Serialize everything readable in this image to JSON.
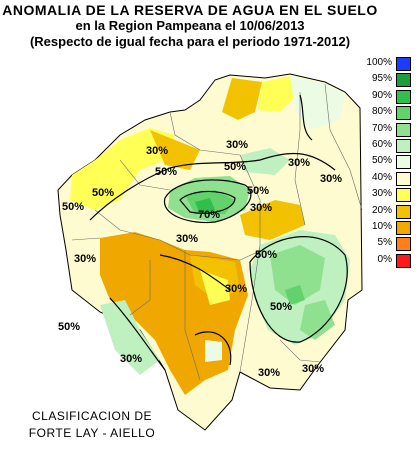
{
  "title": {
    "line1": "ANOMALIA DE LA RESERVA DE AGUA EN EL SUELO",
    "line2": "en la Region Pampeana el   10/06/2013",
    "line3": "(Respecto de igual fecha para el periodo 1971-2012)"
  },
  "legend": [
    {
      "label": "100%",
      "color": "#1a3cff"
    },
    {
      "label": "95%",
      "color": "#1e9e3a"
    },
    {
      "label": "90%",
      "color": "#2fbf4a"
    },
    {
      "label": "80%",
      "color": "#62d36c"
    },
    {
      "label": "70%",
      "color": "#8fe18f"
    },
    {
      "label": "60%",
      "color": "#bff0bf"
    },
    {
      "label": "50%",
      "color": "#ecfbe4"
    },
    {
      "label": "40%",
      "color": "#fffbd0"
    },
    {
      "label": "30%",
      "color": "#ffff55"
    },
    {
      "label": "20%",
      "color": "#f2c200"
    },
    {
      "label": "10%",
      "color": "#f0a800"
    },
    {
      "label": "5%",
      "color": "#ff7f1a"
    },
    {
      "label": "0%",
      "color": "#ff1a1a"
    }
  ],
  "credit": {
    "line1": "CLASIFICACION DE",
    "line2": "FORTE LAY - AIELLO"
  },
  "isolines": [
    {
      "text": "30%"
    },
    {
      "text": "30%"
    },
    {
      "text": "30%"
    },
    {
      "text": "50%"
    },
    {
      "text": "50%"
    },
    {
      "text": "70%"
    },
    {
      "text": "50%"
    },
    {
      "text": "30%"
    },
    {
      "text": "30%"
    },
    {
      "text": "50%"
    },
    {
      "text": "30%"
    },
    {
      "text": "50%"
    },
    {
      "text": "30%"
    },
    {
      "text": "50%"
    },
    {
      "text": "30%"
    },
    {
      "text": "30%"
    },
    {
      "text": "30%"
    },
    {
      "text": "50%"
    },
    {
      "text": "30%"
    },
    {
      "text": "50%"
    }
  ]
}
